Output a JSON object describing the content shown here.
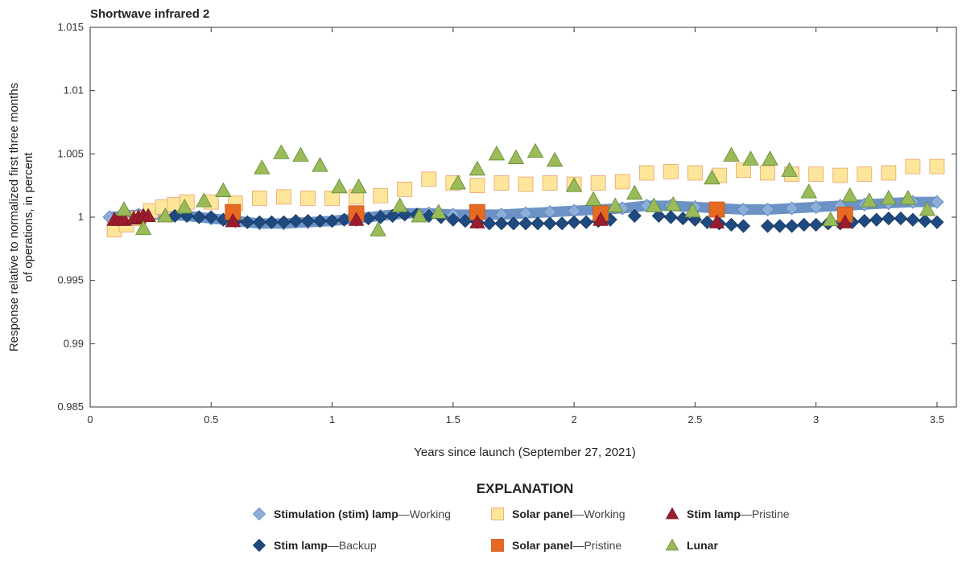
{
  "chart_data": {
    "type": "scatter",
    "title": "Shortwave infrared 2",
    "xlabel": "Years since launch (September 27, 2021)",
    "ylabel_lines": [
      "Response relative to normalized first three months",
      "of operations, in percent"
    ],
    "xlim": [
      0,
      3.58
    ],
    "ylim": [
      0.985,
      1.015
    ],
    "xticks": [
      "0",
      "0.5",
      "1",
      "1.5",
      "2",
      "2.5",
      "3",
      "3.5"
    ],
    "xtick_values": [
      0,
      0.5,
      1,
      1.5,
      2,
      2.5,
      3,
      3.5
    ],
    "yticks": [
      "0.985",
      "0.99",
      "0.995",
      "1",
      "1.005",
      "1.01",
      "1.015"
    ],
    "ytick_values": [
      0.985,
      0.99,
      0.995,
      1,
      1.005,
      1.01,
      1.015
    ],
    "grid": false,
    "legend": {
      "title": "EXPLANATION",
      "placement": "bottom"
    },
    "series": [
      {
        "key": "stim_working",
        "name_bold": "Stimulation (stim) lamp",
        "name_rest": "—Working",
        "marker": "diamond",
        "color": "#8eaed8",
        "stroke": "#5a82b8",
        "x": [
          0.08,
          0.2,
          0.3,
          0.4,
          0.5,
          0.6,
          0.7,
          0.8,
          0.9,
          1.0,
          1.1,
          1.2,
          1.3,
          1.4,
          1.5,
          1.6,
          1.7,
          1.8,
          1.9,
          2.0,
          2.1,
          2.2,
          2.3,
          2.4,
          2.5,
          2.6,
          2.7,
          2.8,
          2.9,
          3.0,
          3.1,
          3.2,
          3.3,
          3.4,
          3.5
        ],
        "y": [
          1.0,
          1.0002,
          1.0002,
          1.0001,
          0.9999,
          0.9997,
          0.9995,
          0.9995,
          0.9996,
          0.9997,
          0.9999,
          1.0001,
          1.0003,
          1.0003,
          1.0002,
          1.0002,
          1.0002,
          1.0003,
          1.0004,
          1.0005,
          1.0006,
          1.0007,
          1.0009,
          1.0009,
          1.0008,
          1.0007,
          1.0006,
          1.0006,
          1.0007,
          1.0008,
          1.0009,
          1.001,
          1.0011,
          1.0012,
          1.0012
        ]
      },
      {
        "key": "solar_working",
        "name_bold": "Solar panel",
        "name_rest": "—Working",
        "marker": "square",
        "color": "#fde69a",
        "stroke": "#e8a070",
        "x": [
          0.1,
          0.15,
          0.2,
          0.25,
          0.3,
          0.35,
          0.4,
          0.5,
          0.6,
          0.7,
          0.8,
          0.9,
          1.0,
          1.1,
          1.2,
          1.3,
          1.4,
          1.5,
          1.6,
          1.7,
          1.8,
          1.9,
          2.0,
          2.1,
          2.2,
          2.3,
          2.4,
          2.5,
          2.6,
          2.7,
          2.8,
          2.9,
          3.0,
          3.1,
          3.2,
          3.3,
          3.4,
          3.5
        ],
        "y": [
          0.999,
          0.9994,
          0.9999,
          1.0005,
          1.0008,
          1.001,
          1.0012,
          1.0012,
          1.0011,
          1.0015,
          1.0016,
          1.0015,
          1.0015,
          1.0016,
          1.0017,
          1.0022,
          1.003,
          1.0027,
          1.0025,
          1.0027,
          1.0026,
          1.0027,
          1.0026,
          1.0027,
          1.0028,
          1.0035,
          1.0036,
          1.0035,
          1.0033,
          1.0037,
          1.0035,
          1.0034,
          1.0034,
          1.0033,
          1.0034,
          1.0035,
          1.004,
          1.004
        ]
      },
      {
        "key": "stim_backup",
        "name_bold": "Stim lamp",
        "name_rest": "—Backup",
        "marker": "diamond",
        "color": "#1f4a80",
        "stroke": "#15355e",
        "x": [
          0.35,
          0.4,
          0.45,
          0.5,
          0.55,
          0.6,
          0.65,
          0.7,
          0.75,
          0.8,
          0.85,
          0.9,
          0.95,
          1.0,
          1.05,
          1.1,
          1.15,
          1.2,
          1.25,
          1.3,
          1.35,
          1.4,
          1.45,
          1.5,
          1.55,
          1.6,
          1.65,
          1.7,
          1.75,
          1.8,
          1.85,
          1.9,
          1.95,
          2.0,
          2.05,
          2.1,
          2.15,
          2.25,
          2.35,
          2.4,
          2.45,
          2.5,
          2.55,
          2.6,
          2.65,
          2.7,
          2.8,
          2.85,
          2.9,
          2.95,
          3.0,
          3.05,
          3.1,
          3.15,
          3.2,
          3.25,
          3.3,
          3.35,
          3.4,
          3.45,
          3.5
        ],
        "y": [
          1.0001,
          1.0001,
          1.0,
          1.0,
          0.9998,
          0.9997,
          0.9996,
          0.9996,
          0.9996,
          0.9996,
          0.9997,
          0.9997,
          0.9997,
          0.9997,
          0.9998,
          0.9998,
          0.9999,
          1.0,
          1.0001,
          1.0002,
          1.0002,
          1.0001,
          1.0,
          0.9998,
          0.9997,
          0.9996,
          0.9995,
          0.9995,
          0.9995,
          0.9995,
          0.9995,
          0.9995,
          0.9995,
          0.9996,
          0.9996,
          0.9997,
          0.9998,
          1.0001,
          1.0001,
          1.0,
          0.9999,
          0.9998,
          0.9996,
          0.9995,
          0.9994,
          0.9993,
          0.9993,
          0.9993,
          0.9993,
          0.9994,
          0.9994,
          0.9995,
          0.9995,
          0.9996,
          0.9997,
          0.9998,
          0.9999,
          0.9999,
          0.9998,
          0.9997,
          0.9996
        ]
      },
      {
        "key": "solar_pristine",
        "name_bold": "Solar panel",
        "name_rest": "—Pristine",
        "marker": "square",
        "color": "#e66a22",
        "stroke": "#c9541a",
        "x": [
          0.59,
          1.1,
          1.6,
          2.11,
          2.59,
          3.12
        ],
        "y": [
          1.0004,
          1.0003,
          1.0004,
          1.0003,
          1.0006,
          1.0002
        ]
      },
      {
        "key": "stim_pristine",
        "name_bold": "Stim lamp",
        "name_rest": "—Pristine",
        "marker": "triangle",
        "color": "#9b1c2c",
        "stroke": "#7a1522",
        "x": [
          0.1,
          0.12,
          0.14,
          0.18,
          0.2,
          0.22,
          0.24,
          0.59,
          1.1,
          1.6,
          2.11,
          2.59,
          3.12
        ],
        "y": [
          0.9998,
          0.9998,
          0.9998,
          0.9999,
          1.0,
          1.0001,
          1.0001,
          0.9997,
          0.9998,
          0.9996,
          0.9998,
          0.9996,
          0.9996
        ]
      },
      {
        "key": "lunar",
        "name_bold": "Lunar",
        "name_rest": "",
        "marker": "triangle",
        "color": "#9bbb59",
        "stroke": "#5d8a30",
        "x": [
          0.14,
          0.22,
          0.31,
          0.39,
          0.47,
          0.55,
          0.71,
          0.79,
          0.87,
          0.95,
          1.03,
          1.11,
          1.19,
          1.28,
          1.36,
          1.44,
          1.52,
          1.6,
          1.68,
          1.76,
          1.84,
          1.92,
          2.0,
          2.08,
          2.17,
          2.25,
          2.33,
          2.41,
          2.49,
          2.57,
          2.65,
          2.73,
          2.81,
          2.89,
          2.97,
          3.06,
          3.14,
          3.22,
          3.3,
          3.38,
          3.46
        ],
        "y": [
          1.0006,
          0.9991,
          1.0001,
          1.0008,
          1.0013,
          1.0021,
          1.0039,
          1.0051,
          1.0049,
          1.0041,
          1.0024,
          1.0024,
          0.999,
          1.0009,
          1.0001,
          1.0004,
          1.0027,
          1.0038,
          1.005,
          1.0047,
          1.0052,
          1.0045,
          1.0025,
          1.0014,
          1.0009,
          1.0019,
          1.0009,
          1.001,
          1.0005,
          1.0031,
          1.0049,
          1.0046,
          1.0046,
          1.0037,
          1.002,
          0.9998,
          1.0017,
          1.0013,
          1.0015,
          1.0015,
          1.0006
        ]
      }
    ]
  }
}
